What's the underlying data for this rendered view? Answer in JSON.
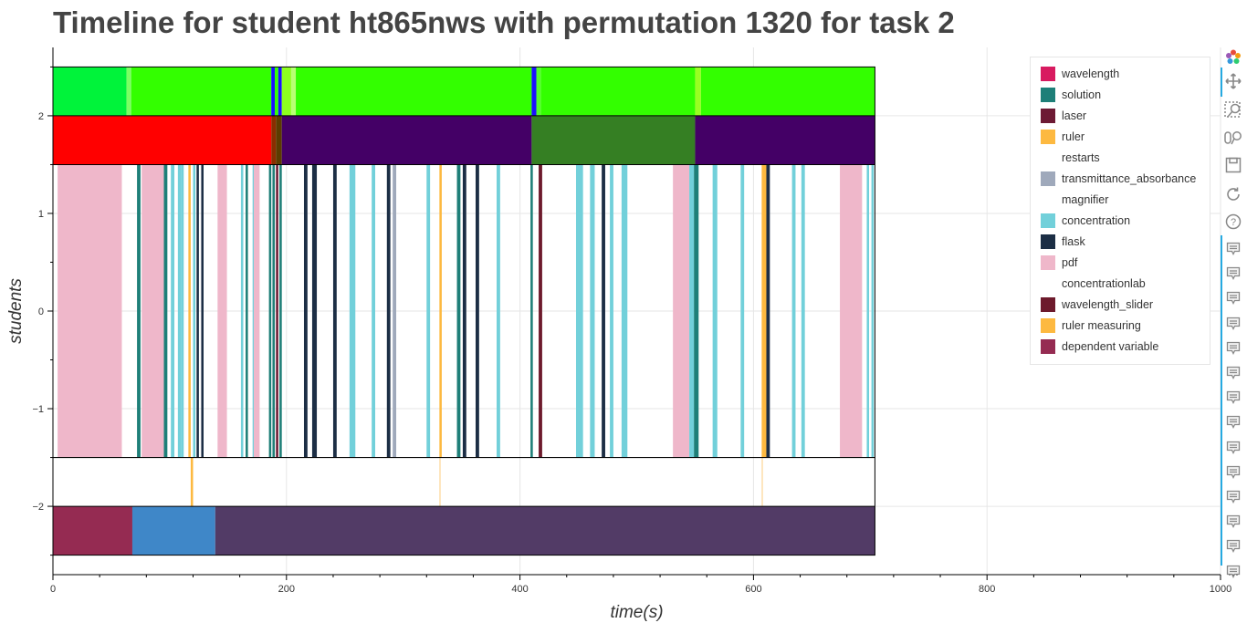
{
  "title": "Timeline for student ht865nws with permutation 1320 for task 2",
  "chart_data": {
    "type": "timeline",
    "title": "Timeline for student ht865nws with permutation 1320 for task 2",
    "xlabel": "time(s)",
    "ylabel": "students",
    "xlim": [
      0,
      1000
    ],
    "ylim": [
      -2.7,
      2.7
    ],
    "x_ticks": [
      0,
      200,
      400,
      600,
      800,
      1000
    ],
    "y_ticks": [
      2,
      1,
      0,
      -1,
      -2
    ],
    "x_tick_labels": [
      "0",
      "200",
      "400",
      "600",
      "800",
      "1000"
    ],
    "y_tick_labels": [
      "2",
      "1",
      "0",
      "−1",
      "−2"
    ],
    "grid": true,
    "legend_position": "top-right",
    "legend": [
      {
        "label": "wavelength",
        "color": "#d81b60"
      },
      {
        "label": "solution",
        "color": "#1e7f78"
      },
      {
        "label": "laser",
        "color": "#6d1a34"
      },
      {
        "label": "ruler",
        "color": "#fdb940"
      },
      {
        "label": "restarts",
        "color": "#ffffff"
      },
      {
        "label": "transmittance_absorbance",
        "color": "#9fa9bb"
      },
      {
        "label": "magnifier",
        "color": "#ffffff"
      },
      {
        "label": "concentration",
        "color": "#72d0da"
      },
      {
        "label": "flask",
        "color": "#1c2e45"
      },
      {
        "label": "pdf",
        "color": "#efb7ca"
      },
      {
        "label": "concentrationlab",
        "color": "#ffffff"
      },
      {
        "label": "wavelength_slider",
        "color": "#6d1a2c"
      },
      {
        "label": "ruler measuring",
        "color": "#fdb940"
      },
      {
        "label": "dependent variable",
        "color": "#952b52"
      }
    ],
    "tracks": [
      {
        "y_range": [
          2.0,
          2.5
        ],
        "segments": [
          [
            0,
            63,
            "#00f33a"
          ],
          [
            63,
            67,
            "#7dff62"
          ],
          [
            67,
            187,
            "#33ff00"
          ],
          [
            187,
            190,
            "#1b10ff"
          ],
          [
            190,
            193,
            "#33ff00"
          ],
          [
            193,
            196,
            "#1b10ff"
          ],
          [
            196,
            204,
            "#8dff1f"
          ],
          [
            204,
            208,
            "#b8ff74"
          ],
          [
            208,
            410,
            "#33ff00"
          ],
          [
            410,
            414,
            "#1b10ff"
          ],
          [
            414,
            418,
            "#55ff2a"
          ],
          [
            418,
            550,
            "#33ff00"
          ],
          [
            550,
            555,
            "#99ff22"
          ],
          [
            555,
            704,
            "#33ff00"
          ]
        ]
      },
      {
        "y_range": [
          1.5,
          2.0
        ],
        "segments": [
          [
            0,
            187,
            "#ff0000"
          ],
          [
            187,
            191,
            "#8a2d00"
          ],
          [
            191,
            196,
            "#5b3c00"
          ],
          [
            196,
            410,
            "#440066"
          ],
          [
            410,
            550,
            "#357f23"
          ],
          [
            550,
            704,
            "#440066"
          ]
        ]
      },
      {
        "y_range": [
          -1.5,
          1.5
        ],
        "segments": [
          [
            4,
            59,
            "#efb7ca"
          ],
          [
            72,
            75,
            "#1e7f78"
          ],
          [
            76,
            95,
            "#efb7ca"
          ],
          [
            95,
            98,
            "#1e7f78"
          ],
          [
            101,
            104,
            "#72d0da"
          ],
          [
            107,
            110,
            "#72d0da"
          ],
          [
            110,
            112,
            "#72d0da"
          ],
          [
            116,
            118,
            "#fdb940"
          ],
          [
            120,
            122,
            "#72d0da"
          ],
          [
            123,
            125,
            "#1c2e45"
          ],
          [
            127,
            129,
            "#1c2e45"
          ],
          [
            141,
            149,
            "#efb7ca"
          ],
          [
            161,
            163,
            "#72d0da"
          ],
          [
            165,
            167,
            "#1e7f78"
          ],
          [
            171,
            172,
            "#72d0da"
          ],
          [
            172,
            177,
            "#efb7ca"
          ],
          [
            185,
            187,
            "#1e7f78"
          ],
          [
            188,
            190,
            "#1e7f78"
          ],
          [
            191,
            193,
            "#6d1a34"
          ],
          [
            194,
            196,
            "#1e7f78"
          ],
          [
            215,
            218,
            "#1c2e45"
          ],
          [
            222,
            226,
            "#1c2e45"
          ],
          [
            240,
            243,
            "#1c2e45"
          ],
          [
            254,
            259,
            "#72d0da"
          ],
          [
            273,
            276,
            "#72d0da"
          ],
          [
            286,
            289,
            "#1c2e45"
          ],
          [
            291,
            294,
            "#9fa9bb"
          ],
          [
            320,
            323,
            "#72d0da"
          ],
          [
            331,
            333,
            "#fdb940"
          ],
          [
            346,
            349,
            "#1e7f78"
          ],
          [
            351,
            354,
            "#1c2e45"
          ],
          [
            362,
            365,
            "#1c2e45"
          ],
          [
            380,
            383,
            "#72d0da"
          ],
          [
            409,
            411,
            "#1e7f78"
          ],
          [
            416,
            419,
            "#6d1a2c"
          ],
          [
            448,
            454,
            "#72d0da"
          ],
          [
            460,
            464,
            "#72d0da"
          ],
          [
            470,
            473,
            "#1c2e45"
          ],
          [
            477,
            480,
            "#72d0da"
          ],
          [
            487,
            492,
            "#72d0da"
          ],
          [
            531,
            545,
            "#efb7ca"
          ],
          [
            545,
            549,
            "#72d0da"
          ],
          [
            549,
            553,
            "#1e7f78"
          ],
          [
            565,
            569,
            "#72d0da"
          ],
          [
            589,
            592,
            "#72d0da"
          ],
          [
            607,
            611,
            "#fdb940"
          ],
          [
            611,
            614,
            "#1c2e45"
          ],
          [
            633,
            636,
            "#72d0da"
          ],
          [
            641,
            644,
            "#72d0da"
          ],
          [
            674,
            693,
            "#efb7ca"
          ],
          [
            697,
            699,
            "#72d0da"
          ],
          [
            701,
            703,
            "#72d0da"
          ]
        ]
      },
      {
        "y_range": [
          -2.0,
          -1.5
        ],
        "segments": [
          [
            118,
            120,
            "#fdb940"
          ],
          [
            331,
            332,
            "#fdd89a"
          ],
          [
            607,
            608,
            "#fdd89a"
          ]
        ]
      },
      {
        "y_range": [
          -2.5,
          -2.0
        ],
        "segments": [
          [
            0,
            68,
            "#952b52"
          ],
          [
            68,
            139,
            "#3f87c8"
          ],
          [
            139,
            704,
            "#523b66"
          ]
        ]
      }
    ],
    "frame_x_range": [
      0,
      704
    ],
    "frame_y_range": [
      -2.5,
      2.5
    ]
  },
  "toolbar": {
    "tools": [
      "bokeh-logo-icon",
      "pan-icon",
      "box-zoom-icon",
      "wheel-zoom-icon",
      "save-icon",
      "reset-icon",
      "help-icon",
      "hover-icon-1",
      "hover-icon-2",
      "hover-icon-3",
      "hover-icon-4",
      "hover-icon-5",
      "hover-icon-6",
      "hover-icon-7",
      "hover-icon-8",
      "hover-icon-9",
      "hover-icon-10",
      "hover-icon-11",
      "hover-icon-12",
      "hover-icon-13",
      "hover-icon-14"
    ],
    "more_label": "…"
  }
}
